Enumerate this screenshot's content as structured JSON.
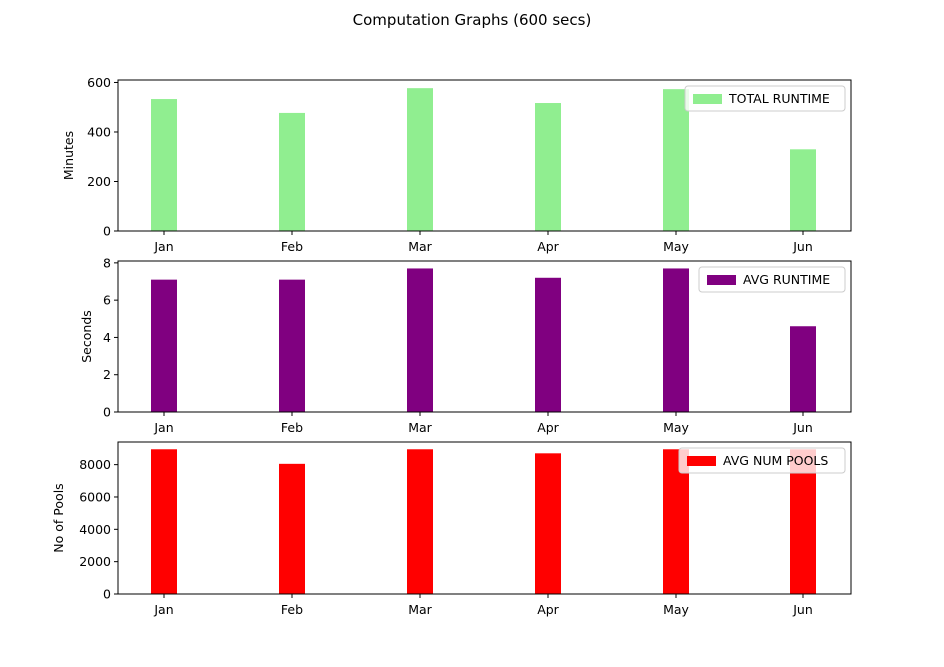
{
  "figure": {
    "suptitle": "Computation Graphs (600 secs)"
  },
  "chart_data": [
    {
      "type": "bar",
      "categories": [
        "Jan",
        "Feb",
        "Mar",
        "Apr",
        "May",
        "Jun"
      ],
      "series": [
        {
          "name": "TOTAL RUNTIME",
          "values": [
            533,
            477,
            577,
            517,
            573,
            330
          ],
          "color": "#90ee90"
        }
      ],
      "xlabel": "",
      "ylabel": "Minutes",
      "ylim": [
        0,
        610
      ],
      "yticks": [
        0,
        200,
        400,
        600
      ],
      "legend": "upper-right",
      "grid": false
    },
    {
      "type": "bar",
      "categories": [
        "Jan",
        "Feb",
        "Mar",
        "Apr",
        "May",
        "Jun"
      ],
      "series": [
        {
          "name": "AVG RUNTIME",
          "values": [
            7.1,
            7.1,
            7.7,
            7.2,
            7.7,
            4.6
          ],
          "color": "#800080"
        }
      ],
      "xlabel": "",
      "ylabel": "Seconds",
      "ylim": [
        0,
        8.1
      ],
      "yticks": [
        0,
        2,
        4,
        6,
        8
      ],
      "legend": "upper-right",
      "grid": false
    },
    {
      "type": "bar",
      "categories": [
        "Jan",
        "Feb",
        "Mar",
        "Apr",
        "May",
        "Jun"
      ],
      "series": [
        {
          "name": "AVG NUM POOLS",
          "values": [
            8950,
            8050,
            8950,
            8700,
            8950,
            8950
          ],
          "color": "#ff0000"
        }
      ],
      "xlabel": "",
      "ylabel": "No of Pools",
      "ylim": [
        0,
        9400
      ],
      "yticks": [
        0,
        2000,
        4000,
        6000,
        8000
      ],
      "legend": "upper-right",
      "grid": false
    }
  ]
}
